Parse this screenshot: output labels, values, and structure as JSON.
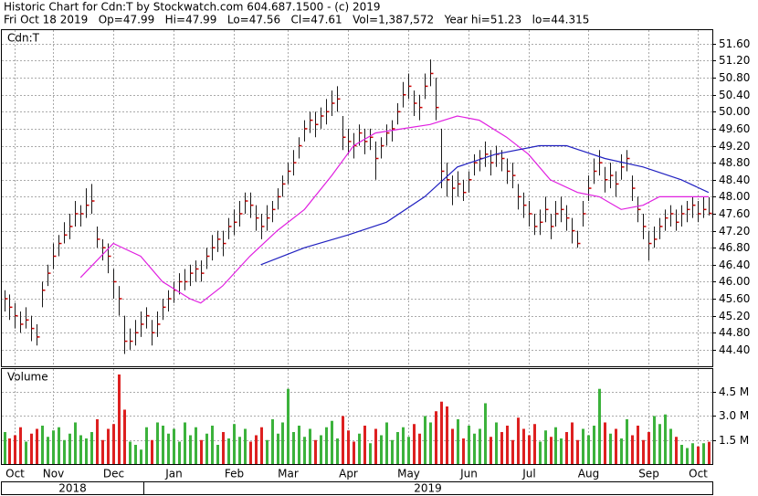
{
  "chart_data": {
    "type": "ohlc",
    "title": "Historic Chart for Cdn:T by Stockwatch.com 604.687.1500 - (c) 2019",
    "subtitle": "Fri Oct 18 2019   Op=47.99   Hi=47.99   Lo=47.56   Cl=47.61   Vol=1,387,572   Year hi=51.23   lo=44.315",
    "symbol_label": "Cdn:T",
    "volume_label": "Volume",
    "bar_color": "#1a1a1a",
    "close_color": "#cc0000",
    "up_color": "#3cb23c",
    "down_color": "#dd2020",
    "grid": true,
    "high": [
      45.8,
      45.7,
      45.5,
      45.3,
      45.4,
      45.2,
      45.0,
      46.0,
      46.4,
      46.9,
      47.1,
      47.4,
      47.6,
      47.9,
      47.8,
      48.2,
      48.3,
      47.3,
      47.0,
      46.9,
      46.3,
      45.9,
      45.2,
      44.9,
      45.1,
      45.3,
      45.4,
      45.1,
      45.3,
      45.6,
      45.8,
      46.0,
      46.2,
      46.3,
      46.4,
      46.5,
      46.5,
      46.8,
      47.1,
      47.2,
      47.2,
      47.5,
      47.7,
      47.9,
      48.1,
      48.1,
      47.8,
      47.6,
      47.8,
      47.9,
      48.2,
      48.5,
      48.8,
      49.1,
      49.4,
      49.8,
      50.0,
      50.0,
      50.1,
      50.3,
      50.5,
      50.6,
      49.9,
      49.6,
      49.5,
      49.7,
      49.6,
      49.6,
      49.3,
      49.4,
      49.7,
      49.8,
      50.2,
      50.7,
      50.9,
      50.5,
      50.4,
      50.9,
      51.23,
      50.8,
      49.6,
      48.8,
      48.5,
      48.6,
      48.4,
      48.6,
      49.0,
      49.1,
      49.3,
      49.1,
      49.2,
      49.1,
      48.9,
      48.8,
      48.3,
      48.1,
      47.9,
      47.6,
      47.7,
      48.0,
      47.6,
      47.9,
      48.0,
      47.8,
      47.5,
      47.2,
      47.9,
      48.5,
      48.9,
      49.1,
      48.7,
      48.8,
      48.6,
      49.0,
      49.1,
      48.5,
      48.0,
      47.6,
      47.2,
      47.3,
      47.5,
      47.7,
      47.8,
      47.7,
      47.8,
      47.9,
      48.0,
      47.9,
      48.0,
      47.99
    ],
    "low": [
      45.3,
      45.1,
      44.9,
      44.8,
      44.9,
      44.6,
      44.5,
      45.4,
      45.9,
      46.3,
      46.6,
      46.9,
      47.0,
      47.3,
      47.3,
      47.5,
      47.6,
      46.8,
      46.5,
      46.2,
      45.6,
      45.2,
      44.3,
      44.4,
      44.5,
      44.7,
      44.9,
      44.5,
      44.7,
      45.1,
      45.3,
      45.5,
      45.7,
      45.8,
      45.9,
      46.0,
      46.0,
      46.3,
      46.5,
      46.7,
      46.6,
      47.0,
      47.1,
      47.3,
      47.6,
      47.5,
      47.2,
      47.0,
      47.2,
      47.4,
      47.7,
      48.0,
      48.3,
      48.5,
      48.9,
      49.3,
      49.5,
      49.4,
      49.6,
      49.7,
      49.9,
      50.0,
      49.1,
      49.0,
      48.9,
      49.2,
      49.0,
      49.1,
      48.4,
      48.9,
      49.2,
      49.3,
      49.7,
      50.1,
      50.3,
      49.9,
      49.8,
      50.3,
      50.6,
      49.8,
      48.2,
      48.0,
      47.8,
      48.0,
      47.9,
      48.1,
      48.5,
      48.6,
      48.7,
      48.5,
      48.7,
      48.6,
      48.3,
      48.2,
      47.7,
      47.5,
      47.3,
      47.1,
      47.1,
      47.4,
      47.0,
      47.3,
      47.4,
      47.2,
      46.9,
      46.8,
      47.3,
      47.9,
      48.3,
      48.5,
      48.1,
      48.2,
      48.0,
      48.4,
      48.6,
      47.9,
      47.4,
      47.0,
      46.5,
      46.8,
      47.0,
      47.2,
      47.3,
      47.2,
      47.3,
      47.4,
      47.5,
      47.4,
      47.5,
      47.56
    ],
    "close": [
      45.6,
      45.4,
      45.2,
      45.0,
      45.1,
      44.9,
      44.7,
      45.8,
      46.2,
      46.6,
      46.9,
      47.1,
      47.3,
      47.6,
      47.6,
      47.8,
      47.9,
      47.0,
      46.8,
      46.6,
      46.0,
      45.6,
      44.6,
      44.6,
      44.8,
      45.0,
      45.2,
      44.8,
      45.0,
      45.4,
      45.6,
      45.8,
      46.0,
      46.0,
      46.2,
      46.3,
      46.2,
      46.6,
      46.8,
      47.0,
      46.9,
      47.3,
      47.4,
      47.6,
      47.9,
      47.8,
      47.5,
      47.3,
      47.5,
      47.7,
      48.0,
      48.3,
      48.6,
      48.8,
      49.2,
      49.6,
      49.8,
      49.7,
      49.9,
      50.0,
      50.2,
      50.3,
      49.4,
      49.3,
      49.2,
      49.5,
      49.3,
      49.4,
      48.9,
      49.2,
      49.5,
      49.6,
      50.0,
      50.4,
      50.6,
      50.2,
      50.1,
      50.6,
      50.9,
      50.1,
      48.6,
      48.4,
      48.2,
      48.3,
      48.1,
      48.4,
      48.8,
      48.9,
      49.0,
      48.8,
      49.0,
      48.9,
      48.6,
      48.5,
      48.0,
      47.8,
      47.6,
      47.3,
      47.4,
      47.7,
      47.3,
      47.6,
      47.7,
      47.5,
      47.2,
      46.9,
      47.6,
      48.2,
      48.6,
      48.8,
      48.4,
      48.5,
      48.3,
      48.7,
      48.9,
      48.2,
      47.7,
      47.3,
      46.9,
      47.0,
      47.3,
      47.5,
      47.6,
      47.4,
      47.6,
      47.7,
      47.8,
      47.6,
      47.7,
      47.61
    ],
    "volume": [
      2.0,
      1.6,
      1.8,
      2.3,
      1.4,
      1.9,
      2.2,
      2.4,
      1.7,
      2.1,
      2.3,
      1.5,
      1.9,
      2.6,
      1.8,
      1.6,
      2.0,
      2.8,
      1.5,
      2.2,
      2.5,
      5.6,
      3.4,
      1.4,
      1.2,
      0.9,
      2.3,
      1.5,
      2.6,
      2.4,
      1.9,
      2.2,
      1.4,
      2.6,
      1.8,
      2.3,
      1.5,
      1.9,
      2.4,
      1.2,
      2.0,
      1.6,
      2.5,
      1.7,
      2.2,
      1.4,
      1.8,
      2.3,
      1.5,
      2.8,
      1.9,
      2.6,
      4.7,
      2.0,
      2.4,
      1.7,
      2.2,
      1.5,
      1.8,
      2.3,
      2.7,
      1.6,
      3.0,
      2.1,
      1.4,
      1.9,
      2.4,
      1.3,
      2.2,
      1.8,
      2.6,
      1.5,
      2.0,
      2.3,
      1.7,
      2.5,
      1.9,
      3.0,
      2.6,
      3.3,
      3.9,
      3.6,
      2.2,
      2.8,
      1.6,
      2.4,
      1.9,
      2.2,
      3.8,
      1.7,
      2.6,
      2.0,
      2.4,
      1.5,
      2.9,
      2.2,
      1.8,
      2.5,
      1.4,
      2.1,
      1.7,
      2.3,
      1.6,
      2.0,
      2.6,
      1.5,
      2.2,
      1.8,
      2.4,
      4.7,
      2.6,
      1.9,
      2.2,
      1.6,
      2.8,
      1.8,
      2.4,
      1.5,
      2.0,
      3.0,
      2.5,
      3.1,
      2.2,
      1.7,
      1.2,
      1.0,
      1.3,
      1.1,
      1.3,
      1.39
    ],
    "moving_averages": [
      {
        "color": "#e020e0",
        "x": [
          14,
          20,
          25,
          29,
          34,
          36,
          40,
          45,
          50,
          55,
          60,
          64,
          68,
          73,
          78,
          83,
          87,
          92,
          96,
          100,
          105,
          109,
          113,
          117,
          120,
          124,
          129
        ],
        "values": [
          46.1,
          46.9,
          46.6,
          46.0,
          45.6,
          45.5,
          45.9,
          46.6,
          47.2,
          47.7,
          48.5,
          49.2,
          49.5,
          49.6,
          49.7,
          49.9,
          49.8,
          49.4,
          49.0,
          48.4,
          48.1,
          48.0,
          47.7,
          47.8,
          48.0,
          48.0,
          48.0
        ]
      },
      {
        "color": "#2020c0",
        "x": [
          47,
          55,
          63,
          70,
          77,
          83,
          90,
          98,
          103,
          110,
          117,
          124,
          129
        ],
        "values": [
          46.4,
          46.8,
          47.1,
          47.4,
          48.0,
          48.7,
          49.0,
          49.2,
          49.2,
          48.9,
          48.7,
          48.4,
          48.1
        ]
      }
    ],
    "ylim": [
      44.01,
      51.92
    ],
    "yticks": [
      {
        "value": 51.6,
        "label": "51.60"
      },
      {
        "value": 51.2,
        "label": "51.20"
      },
      {
        "value": 50.8,
        "label": "50.80"
      },
      {
        "value": 50.4,
        "label": "50.40"
      },
      {
        "value": 50,
        "label": "50.00"
      },
      {
        "value": 49.6,
        "label": "49.60"
      },
      {
        "value": 49.2,
        "label": "49.20"
      },
      {
        "value": 48.8,
        "label": "48.80"
      },
      {
        "value": 48.4,
        "label": "48.40"
      },
      {
        "value": 48,
        "label": "48.00"
      },
      {
        "value": 47.6,
        "label": "47.60"
      },
      {
        "value": 47.2,
        "label": "47.20"
      },
      {
        "value": 46.8,
        "label": "46.80"
      },
      {
        "value": 46.4,
        "label": "46.40"
      },
      {
        "value": 46,
        "label": "46.00"
      },
      {
        "value": 45.6,
        "label": "45.60"
      },
      {
        "value": 45.2,
        "label": "45.20"
      },
      {
        "value": 44.8,
        "label": "44.80"
      },
      {
        "value": 44.4,
        "label": "44.40"
      }
    ],
    "vlim": [
      0,
      5.94
    ],
    "vticks": [
      {
        "value": 4.5,
        "label": "4.5 M"
      },
      {
        "value": 3,
        "label": "3.0 M"
      },
      {
        "value": 1.5,
        "label": "1.5 M"
      }
    ],
    "xticks": [
      {
        "value": 2,
        "label": "Oct"
      },
      {
        "value": 9,
        "label": "Nov"
      },
      {
        "value": 20,
        "label": "Dec"
      },
      {
        "value": 31,
        "label": "Jan"
      },
      {
        "value": 42,
        "label": "Feb"
      },
      {
        "value": 52,
        "label": "Mar"
      },
      {
        "value": 63,
        "label": "Apr"
      },
      {
        "value": 74,
        "label": "May"
      },
      {
        "value": 85,
        "label": "Jun"
      },
      {
        "value": 96,
        "label": "Jul"
      },
      {
        "value": 107,
        "label": "Aug"
      },
      {
        "value": 118,
        "label": "Sep"
      },
      {
        "value": 127,
        "label": "Oct"
      }
    ],
    "years": [
      {
        "value": 0,
        "label": "2018"
      },
      {
        "value": 25.5,
        "label": "2019"
      }
    ]
  }
}
